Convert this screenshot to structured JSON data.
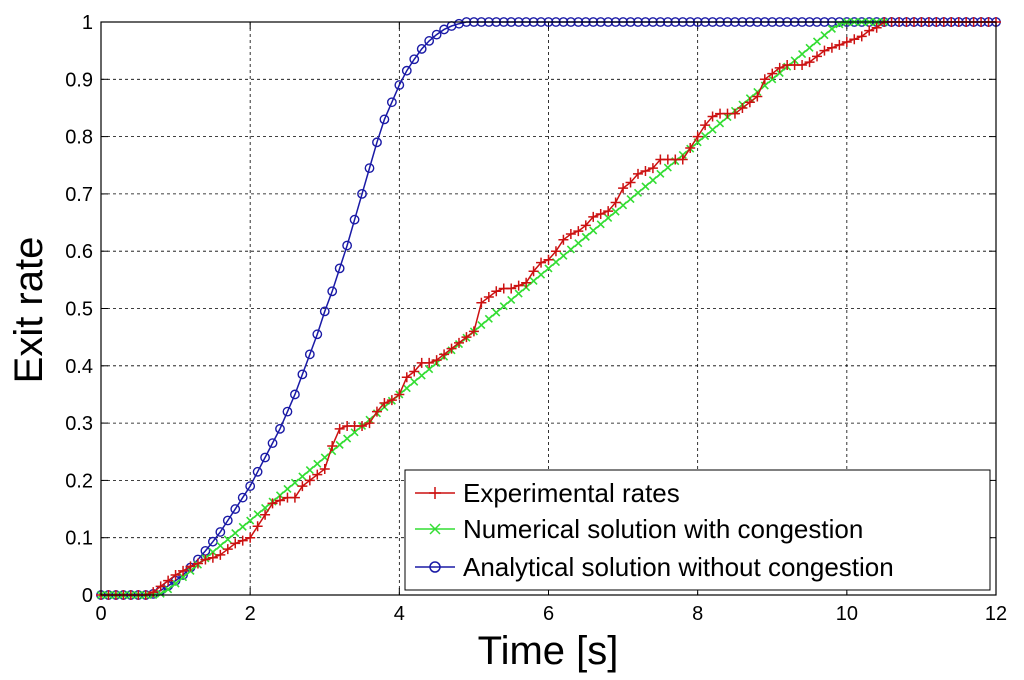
{
  "chart_data": {
    "type": "line",
    "xlabel": "Time [s]",
    "ylabel": "Exit rate",
    "xlim": [
      0,
      12
    ],
    "ylim": [
      0,
      1
    ],
    "xticks": [
      0,
      2,
      4,
      6,
      8,
      10,
      12
    ],
    "yticks": [
      0,
      0.1,
      0.2,
      0.3,
      0.4,
      0.5,
      0.6,
      0.7,
      0.8,
      0.9,
      1
    ],
    "xtick_labels": [
      "0",
      "2",
      "4",
      "6",
      "8",
      "10",
      "12"
    ],
    "ytick_labels": [
      "0",
      "0.1",
      "0.2",
      "0.3",
      "0.4",
      "0.5",
      "0.6",
      "0.7",
      "0.8",
      "0.9",
      "1"
    ],
    "grid": true,
    "legend_position": "bottom-right",
    "series": [
      {
        "name": "Experimental rates",
        "color": "#cc1111",
        "marker": "plus",
        "x": [
          0.0,
          0.1,
          0.2,
          0.3,
          0.4,
          0.5,
          0.6,
          0.7,
          0.8,
          0.9,
          1.0,
          1.1,
          1.2,
          1.3,
          1.4,
          1.5,
          1.6,
          1.7,
          1.8,
          1.9,
          2.0,
          2.1,
          2.2,
          2.3,
          2.4,
          2.5,
          2.6,
          2.7,
          2.8,
          2.9,
          3.0,
          3.1,
          3.2,
          3.3,
          3.4,
          3.5,
          3.6,
          3.7,
          3.8,
          3.9,
          4.0,
          4.1,
          4.2,
          4.3,
          4.4,
          4.5,
          4.6,
          4.7,
          4.8,
          4.9,
          5.0,
          5.1,
          5.2,
          5.3,
          5.4,
          5.5,
          5.6,
          5.7,
          5.8,
          5.9,
          6.0,
          6.1,
          6.2,
          6.3,
          6.4,
          6.5,
          6.6,
          6.7,
          6.8,
          6.9,
          7.0,
          7.1,
          7.2,
          7.3,
          7.4,
          7.5,
          7.6,
          7.7,
          7.8,
          7.9,
          8.0,
          8.1,
          8.2,
          8.3,
          8.4,
          8.5,
          8.6,
          8.7,
          8.8,
          8.9,
          9.0,
          9.1,
          9.2,
          9.3,
          9.4,
          9.5,
          9.6,
          9.7,
          9.8,
          9.9,
          10.0,
          10.1,
          10.2,
          10.3,
          10.4,
          10.5,
          10.6,
          10.7,
          10.8,
          10.9,
          11.0,
          11.1,
          11.2,
          11.3,
          11.4,
          11.5,
          11.6,
          11.7,
          11.8,
          11.9,
          12.0
        ],
        "y": [
          0,
          0,
          0,
          0,
          0,
          0,
          0,
          0.005,
          0.015,
          0.025,
          0.035,
          0.042,
          0.05,
          0.055,
          0.062,
          0.065,
          0.07,
          0.08,
          0.09,
          0.095,
          0.1,
          0.12,
          0.14,
          0.16,
          0.165,
          0.17,
          0.17,
          0.19,
          0.2,
          0.21,
          0.22,
          0.26,
          0.29,
          0.295,
          0.295,
          0.295,
          0.3,
          0.32,
          0.335,
          0.34,
          0.35,
          0.38,
          0.39,
          0.405,
          0.405,
          0.41,
          0.42,
          0.43,
          0.44,
          0.45,
          0.46,
          0.51,
          0.52,
          0.53,
          0.535,
          0.535,
          0.54,
          0.545,
          0.565,
          0.58,
          0.585,
          0.6,
          0.62,
          0.63,
          0.635,
          0.645,
          0.66,
          0.665,
          0.67,
          0.685,
          0.71,
          0.72,
          0.735,
          0.74,
          0.745,
          0.76,
          0.76,
          0.76,
          0.76,
          0.78,
          0.8,
          0.82,
          0.835,
          0.84,
          0.84,
          0.84,
          0.85,
          0.86,
          0.87,
          0.9,
          0.91,
          0.92,
          0.925,
          0.925,
          0.925,
          0.93,
          0.94,
          0.95,
          0.955,
          0.96,
          0.965,
          0.97,
          0.975,
          0.985,
          0.99,
          1,
          1,
          1,
          1,
          1,
          1,
          1,
          1,
          1,
          1,
          1,
          1,
          1,
          1,
          1,
          1
        ]
      },
      {
        "name": "Numerical solution with congestion",
        "color": "#33dd33",
        "marker": "x",
        "x": [
          0.0,
          0.1,
          0.2,
          0.3,
          0.4,
          0.5,
          0.6,
          0.7,
          0.8,
          0.9,
          1.0,
          1.1,
          1.2,
          1.3,
          1.4,
          1.5,
          1.6,
          1.7,
          1.8,
          1.9,
          2.0,
          2.1,
          2.2,
          2.3,
          2.4,
          2.5,
          2.6,
          2.7,
          2.8,
          2.9,
          3.0,
          3.1,
          3.2,
          3.3,
          3.4,
          3.5,
          3.6,
          3.7,
          3.8,
          3.9,
          4.0,
          4.1,
          4.2,
          4.3,
          4.4,
          4.5,
          4.6,
          4.7,
          4.8,
          4.9,
          5.0,
          5.1,
          5.2,
          5.3,
          5.4,
          5.5,
          5.6,
          5.7,
          5.8,
          5.9,
          6.0,
          6.1,
          6.2,
          6.3,
          6.4,
          6.5,
          6.6,
          6.7,
          6.8,
          6.9,
          7.0,
          7.1,
          7.2,
          7.3,
          7.4,
          7.5,
          7.6,
          7.7,
          7.8,
          7.9,
          8.0,
          8.1,
          8.2,
          8.3,
          8.4,
          8.5,
          8.6,
          8.7,
          8.8,
          8.9,
          9.0,
          9.1,
          9.2,
          9.3,
          9.4,
          9.5,
          9.6,
          9.7,
          9.8,
          9.9,
          10.0,
          10.1,
          10.2,
          10.3,
          10.4,
          10.5
        ],
        "y": [
          0,
          0,
          0,
          0,
          0,
          0,
          0,
          0,
          0.002,
          0.01,
          0.02,
          0.031,
          0.042,
          0.053,
          0.064,
          0.075,
          0.086,
          0.097,
          0.108,
          0.119,
          0.13,
          0.141,
          0.152,
          0.163,
          0.174,
          0.185,
          0.196,
          0.207,
          0.218,
          0.229,
          0.24,
          0.251,
          0.262,
          0.273,
          0.284,
          0.295,
          0.306,
          0.317,
          0.328,
          0.339,
          0.35,
          0.361,
          0.372,
          0.383,
          0.394,
          0.405,
          0.416,
          0.427,
          0.438,
          0.449,
          0.46,
          0.471,
          0.482,
          0.493,
          0.504,
          0.515,
          0.526,
          0.537,
          0.548,
          0.559,
          0.57,
          0.581,
          0.592,
          0.603,
          0.614,
          0.625,
          0.636,
          0.647,
          0.658,
          0.669,
          0.68,
          0.691,
          0.702,
          0.713,
          0.724,
          0.735,
          0.746,
          0.757,
          0.768,
          0.779,
          0.79,
          0.801,
          0.812,
          0.823,
          0.834,
          0.845,
          0.856,
          0.867,
          0.878,
          0.889,
          0.9,
          0.911,
          0.922,
          0.933,
          0.944,
          0.955,
          0.966,
          0.977,
          0.988,
          0.996,
          1,
          1,
          1,
          1,
          1,
          1
        ]
      },
      {
        "name": "Analytical solution without congestion",
        "color": "#1a1aa6",
        "marker": "circle",
        "x": [
          0.0,
          0.1,
          0.2,
          0.3,
          0.4,
          0.5,
          0.6,
          0.7,
          0.8,
          0.9,
          1.0,
          1.1,
          1.2,
          1.3,
          1.4,
          1.5,
          1.6,
          1.7,
          1.8,
          1.9,
          2.0,
          2.1,
          2.2,
          2.3,
          2.4,
          2.5,
          2.6,
          2.7,
          2.8,
          2.9,
          3.0,
          3.1,
          3.2,
          3.3,
          3.4,
          3.5,
          3.6,
          3.7,
          3.8,
          3.9,
          4.0,
          4.1,
          4.2,
          4.3,
          4.4,
          4.5,
          4.6,
          4.7,
          4.8,
          4.9,
          5.0,
          5.1,
          5.2,
          5.3,
          5.4,
          5.5,
          5.6,
          5.7,
          5.8,
          5.9,
          6.0,
          6.1,
          6.2,
          6.3,
          6.4,
          6.5,
          6.6,
          6.7,
          6.8,
          6.9,
          7.0,
          7.1,
          7.2,
          7.3,
          7.4,
          7.5,
          7.6,
          7.7,
          7.8,
          7.9,
          8.0,
          8.1,
          8.2,
          8.3,
          8.4,
          8.5,
          8.6,
          8.7,
          8.8,
          8.9,
          9.0,
          9.1,
          9.2,
          9.3,
          9.4,
          9.5,
          9.6,
          9.7,
          9.8,
          9.9,
          10.0,
          10.1,
          10.2,
          10.3,
          10.4,
          10.5,
          10.6,
          10.7,
          10.8,
          10.9,
          11.0,
          11.1,
          11.2,
          11.3,
          11.4,
          11.5,
          11.6,
          11.7,
          11.8,
          11.9,
          12.0
        ],
        "y": [
          0,
          0,
          0,
          0,
          0,
          0,
          0,
          0.002,
          0.008,
          0.016,
          0.025,
          0.035,
          0.048,
          0.062,
          0.077,
          0.093,
          0.11,
          0.13,
          0.15,
          0.17,
          0.19,
          0.215,
          0.24,
          0.265,
          0.29,
          0.32,
          0.35,
          0.385,
          0.42,
          0.455,
          0.495,
          0.53,
          0.57,
          0.61,
          0.655,
          0.7,
          0.745,
          0.79,
          0.83,
          0.86,
          0.89,
          0.915,
          0.935,
          0.953,
          0.967,
          0.978,
          0.987,
          0.993,
          0.997,
          1,
          1,
          1,
          1,
          1,
          1,
          1,
          1,
          1,
          1,
          1,
          1,
          1,
          1,
          1,
          1,
          1,
          1,
          1,
          1,
          1,
          1,
          1,
          1,
          1,
          1,
          1,
          1,
          1,
          1,
          1,
          1,
          1,
          1,
          1,
          1,
          1,
          1,
          1,
          1,
          1,
          1,
          1,
          1,
          1,
          1,
          1,
          1,
          1,
          1,
          1,
          1,
          1,
          1,
          1,
          1,
          1,
          1,
          1,
          1,
          1,
          1,
          1,
          1,
          1,
          1,
          1,
          1,
          1,
          1,
          1,
          1
        ]
      }
    ]
  }
}
